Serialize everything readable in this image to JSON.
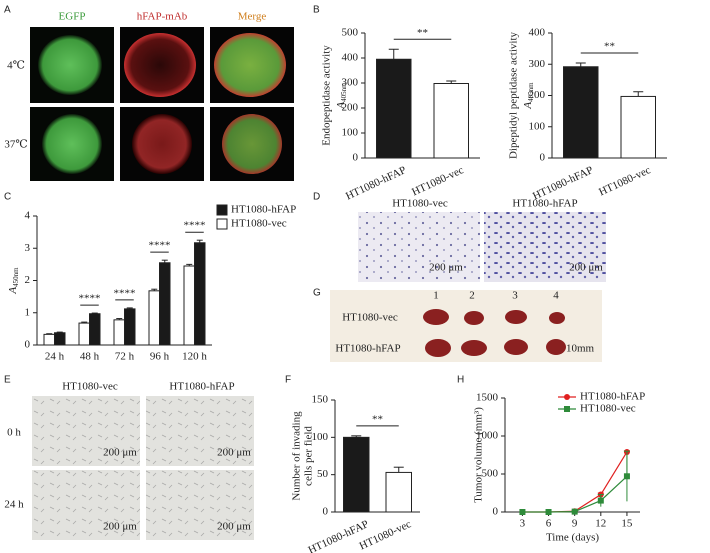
{
  "panel_labels": {
    "a": "A",
    "b": "B",
    "c": "C",
    "d": "D",
    "e": "E",
    "f": "F",
    "g": "G",
    "h": "H"
  },
  "panel_a": {
    "columns": [
      "EGFP",
      "hFAP-mAb",
      "Merge"
    ],
    "rows": [
      "4℃",
      "37℃"
    ]
  },
  "panel_d": {
    "columns": [
      "HT1080-vec",
      "HT1080-hFAP"
    ],
    "scale_bars": [
      "200 μm",
      "200 μm"
    ]
  },
  "panel_g": {
    "lanes": [
      "1",
      "2",
      "3",
      "4"
    ],
    "rows": [
      "HT1080-vec",
      "HT1080-hFAP"
    ],
    "scale_bar": "10mm"
  },
  "panel_e": {
    "columns": [
      "HT1080-vec",
      "HT1080-hFAP"
    ],
    "rows": [
      "0 h",
      "24 h"
    ],
    "scale_bars": [
      "200 μm",
      "200 μm",
      "200 μm",
      "200 μm"
    ]
  },
  "chart_data": [
    {
      "type": "bar",
      "categories": [
        "HT1080-hFAP",
        "HT1080-vec"
      ],
      "values": [
        395,
        298
      ],
      "errors": [
        40,
        10
      ],
      "colors": [
        "#1a1a1a",
        "#ffffff"
      ],
      "y_label": [
        "Endopeptidase activity"
      ],
      "y_symbol": "A",
      "y_symbol_sub": "405nm",
      "significance": "**",
      "ylim": [
        0,
        500
      ],
      "yticks": [
        0,
        100,
        200,
        300,
        400,
        500
      ]
    },
    {
      "type": "bar",
      "categories": [
        "HT1080-hFAP",
        "HT1080-vec"
      ],
      "values": [
        292,
        197
      ],
      "errors": [
        12,
        15
      ],
      "colors": [
        "#1a1a1a",
        "#ffffff"
      ],
      "y_label": [
        "Dipeptidyl peptidase activity"
      ],
      "y_symbol": "A",
      "y_symbol_sub": "405nm",
      "significance": "**",
      "ylim": [
        0,
        400
      ],
      "yticks": [
        0,
        100,
        200,
        300,
        400
      ]
    },
    {
      "type": "grouped_bar",
      "categories": [
        "24 h",
        "48 h",
        "72 h",
        "96 h",
        "120 h"
      ],
      "series": [
        {
          "name": "HT1080-hFAP",
          "color": "#1a1a1a",
          "values": [
            0.38,
            0.97,
            1.12,
            2.55,
            3.17
          ],
          "errors": [
            0.02,
            0.02,
            0.03,
            0.08,
            0.08
          ]
        },
        {
          "name": "HT1080-vec",
          "color": "#ffffff",
          "values": [
            0.33,
            0.68,
            0.78,
            1.68,
            2.45
          ],
          "errors": [
            0.02,
            0.03,
            0.04,
            0.05,
            0.05
          ]
        }
      ],
      "y_symbol": "A",
      "y_symbol_sub": "450nm",
      "significance": [
        null,
        "****",
        "****",
        "****",
        "****"
      ],
      "ylim": [
        0,
        4
      ],
      "yticks": [
        0,
        1,
        2,
        3,
        4
      ]
    },
    {
      "type": "bar",
      "categories": [
        "HT1080-hFAP",
        "HT1080-vec"
      ],
      "values": [
        100,
        53
      ],
      "errors": [
        2,
        7
      ],
      "colors": [
        "#1a1a1a",
        "#ffffff"
      ],
      "y_label": [
        "Number of invading",
        "cells per field"
      ],
      "significance": "**",
      "ylim": [
        0,
        150
      ],
      "yticks": [
        0,
        50,
        100,
        150
      ]
    },
    {
      "type": "line",
      "x": [
        3,
        6,
        9,
        12,
        15
      ],
      "series": [
        {
          "name": "HT1080-hFAP",
          "color": "#e02020",
          "marker": "circle",
          "values": [
            0,
            0,
            10,
            230,
            790
          ],
          "errors": [
            0,
            0,
            5,
            20,
            15
          ]
        },
        {
          "name": "HT1080-vec",
          "color": "#2e8b3a",
          "marker": "square",
          "values": [
            0,
            0,
            5,
            150,
            470
          ],
          "errors": [
            0,
            0,
            10,
            80,
            330
          ]
        }
      ],
      "x_label": "Time (days)",
      "y_label": [
        "Tumor volume (mm³)"
      ],
      "xlim": [
        1,
        16.5
      ],
      "xticks": [
        3,
        6,
        9,
        12,
        15
      ],
      "ylim": [
        0,
        1500
      ],
      "yticks": [
        0,
        500,
        1000,
        1500
      ]
    }
  ]
}
